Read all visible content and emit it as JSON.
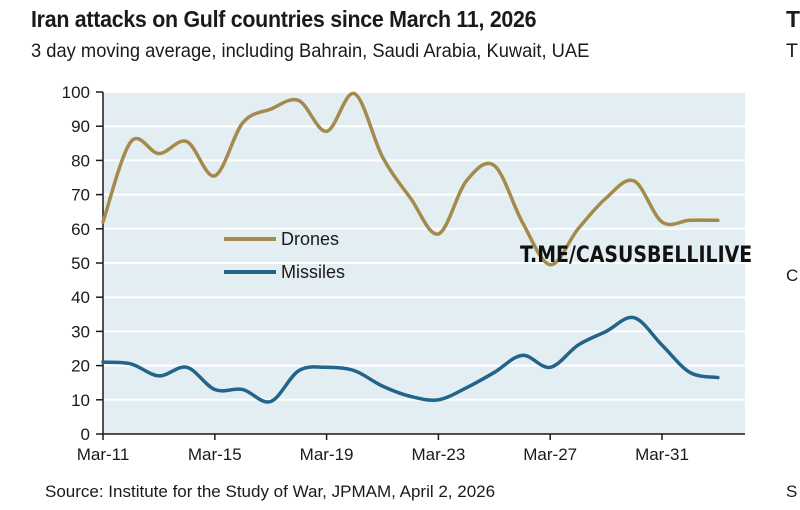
{
  "chart_data": {
    "type": "line",
    "title": "Iran attacks on Gulf countries since March 11, 2026",
    "subtitle": "3 day moving average, including Bahrain, Saudi Arabia, Kuwait, UAE",
    "source": "Source: Institute for the Study of War, JPMAM, April 2, 2026",
    "xlabel": "",
    "ylabel": "",
    "ylim": [
      0,
      100
    ],
    "yticks": [
      0,
      10,
      20,
      30,
      40,
      50,
      60,
      70,
      80,
      90,
      100
    ],
    "x": [
      "Mar-11",
      "Mar-12",
      "Mar-13",
      "Mar-14",
      "Mar-15",
      "Mar-16",
      "Mar-17",
      "Mar-18",
      "Mar-19",
      "Mar-20",
      "Mar-21",
      "Mar-22",
      "Mar-23",
      "Mar-24",
      "Mar-25",
      "Mar-26",
      "Mar-27",
      "Mar-28",
      "Mar-29",
      "Mar-30",
      "Mar-31",
      "Apr-01",
      "Apr-02"
    ],
    "xticks": [
      "Mar-11",
      "Mar-15",
      "Mar-19",
      "Mar-23",
      "Mar-27",
      "Mar-31"
    ],
    "xlim_days": [
      0,
      23
    ],
    "grid": "horizontal",
    "background_color": "#e3eef3",
    "legend_position": "center-left",
    "series": [
      {
        "name": "Drones",
        "color": "#a48a4c",
        "values": [
          62,
          85.5,
          82,
          85.5,
          75.5,
          91,
          95,
          97.5,
          88.5,
          99.5,
          81,
          69,
          58.5,
          74,
          78.5,
          62,
          49.5,
          60,
          69,
          74,
          62,
          62.5,
          62.5
        ]
      },
      {
        "name": "Missiles",
        "color": "#23648a",
        "values": [
          21,
          20.5,
          17,
          19.5,
          13,
          13,
          9.5,
          18.5,
          19.5,
          18.5,
          14,
          11,
          10,
          13.5,
          18,
          23,
          19.5,
          26,
          30,
          34,
          26,
          18,
          16.5
        ]
      }
    ]
  },
  "watermark": "T.ME/CASUSBELLILIVE",
  "cropped_edge": {
    "title_fragment": "T",
    "subtitle_fragment": "T",
    "mid_fragment": "C",
    "source_fragment": "S"
  }
}
